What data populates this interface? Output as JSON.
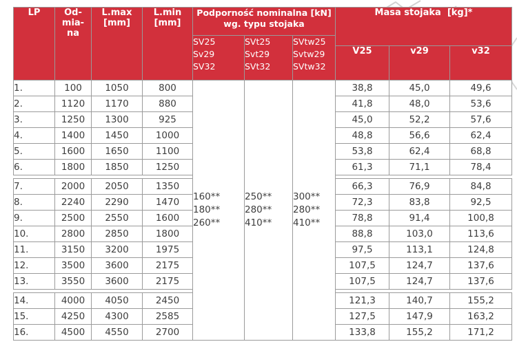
{
  "colors": {
    "header_red": "#d2303c",
    "border_gray": "#9a9a9a",
    "body_text": "#3d3d3d",
    "decor_gray": "#d2d2d2"
  },
  "table": {
    "header": {
      "lp": "LP",
      "odmiana_lines": [
        "Od-",
        "mia-",
        "na"
      ],
      "lmax_lines": [
        "L.max",
        "[mm]"
      ],
      "lmin_lines": [
        "L.min",
        "[mm]"
      ],
      "podpornosc_title_lines": [
        "Podporność nominalna [kN]",
        "wg. typu stojaka"
      ],
      "podpornosc_subcols": [
        [
          "SV25",
          "Sv29",
          "SV32"
        ],
        [
          "SVt25",
          "Svt29",
          "SVt32"
        ],
        [
          "SVtw25",
          "Svtw29",
          "SVtw32"
        ]
      ],
      "masa_title": "Masa stojaka  [kg]*",
      "masa_subcols": [
        "V25",
        "v29",
        "v32"
      ]
    },
    "podpornosc_values": [
      [
        "160**",
        "180**",
        "260**"
      ],
      [
        "250**",
        "280**",
        "410**"
      ],
      [
        "300**",
        "280**",
        "410**"
      ]
    ],
    "rows": [
      {
        "lp": "1.",
        "odmiana": "100",
        "lmax": "1050",
        "lmin": "800",
        "v25": "38,8",
        "v29": "45,0",
        "v32": "49,6"
      },
      {
        "lp": "2.",
        "odmiana": "1120",
        "lmax": "1170",
        "lmin": "880",
        "v25": "41,8",
        "v29": "48,0",
        "v32": "53,6"
      },
      {
        "lp": "3.",
        "odmiana": "1250",
        "lmax": "1300",
        "lmin": "925",
        "v25": "45,0",
        "v29": "52,2",
        "v32": "57,6"
      },
      {
        "lp": "4.",
        "odmiana": "1400",
        "lmax": "1450",
        "lmin": "1000",
        "v25": "48,8",
        "v29": "56,6",
        "v32": "62,4"
      },
      {
        "lp": "5.",
        "odmiana": "1600",
        "lmax": "1650",
        "lmin": "1100",
        "v25": "53,8",
        "v29": "62,4",
        "v32": "68,8"
      },
      {
        "lp": "6.",
        "odmiana": "1800",
        "lmax": "1850",
        "lmin": "1250",
        "v25": "61,3",
        "v29": "71,1",
        "v32": "78,4"
      },
      {
        "lp": "7.",
        "odmiana": "2000",
        "lmax": "2050",
        "lmin": "1350",
        "v25": "66,3",
        "v29": "76,9",
        "v32": "84,8"
      },
      {
        "lp": "8.",
        "odmiana": "2240",
        "lmax": "2290",
        "lmin": "1470",
        "v25": "72,3",
        "v29": "83,8",
        "v32": "92,5"
      },
      {
        "lp": "9.",
        "odmiana": "2500",
        "lmax": "2550",
        "lmin": "1600",
        "v25": "78,8",
        "v29": "91,4",
        "v32": "100,8"
      },
      {
        "lp": "10.",
        "odmiana": "2800",
        "lmax": "2850",
        "lmin": "1800",
        "v25": "88,8",
        "v29": "103,0",
        "v32": "113,6"
      },
      {
        "lp": "11.",
        "odmiana": "3150",
        "lmax": "3200",
        "lmin": "1975",
        "v25": "97,5",
        "v29": "113,1",
        "v32": "124,8"
      },
      {
        "lp": "12.",
        "odmiana": "3500",
        "lmax": "3600",
        "lmin": "2175",
        "v25": "107,5",
        "v29": "124,7",
        "v32": "137,6"
      },
      {
        "lp": "13.",
        "odmiana": "3550",
        "lmax": "3600",
        "lmin": "2175",
        "v25": "107,5",
        "v29": "124,7",
        "v32": "137,6"
      },
      {
        "lp": "14.",
        "odmiana": "4000",
        "lmax": "4050",
        "lmin": "2450",
        "v25": "121,3",
        "v29": "140,7",
        "v32": "155,2"
      },
      {
        "lp": "15.",
        "odmiana": "4250",
        "lmax": "4300",
        "lmin": "2585",
        "v25": "127,5",
        "v29": "147,9",
        "v32": "163,2"
      },
      {
        "lp": "16.",
        "odmiana": "4500",
        "lmax": "4550",
        "lmin": "2700",
        "v25": "133,8",
        "v29": "155,2",
        "v32": "171,2"
      }
    ],
    "group_breaks_after_row": [
      6,
      13
    ]
  }
}
